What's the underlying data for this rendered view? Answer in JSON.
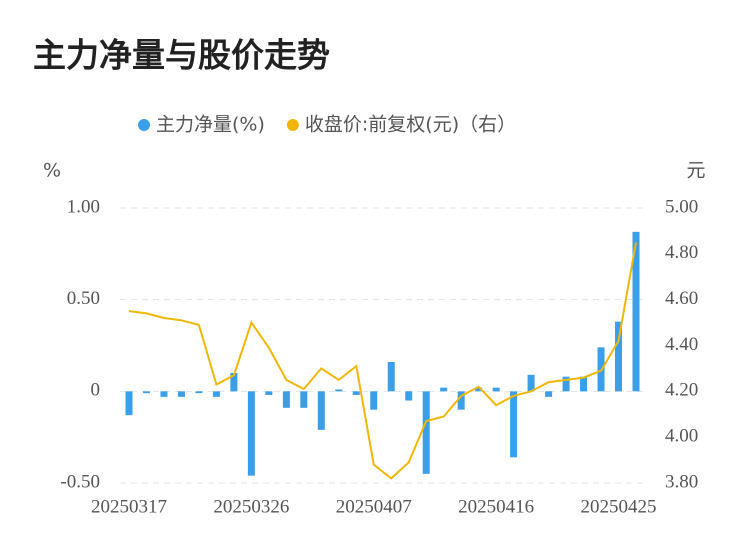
{
  "chart_data": {
    "type": "combo",
    "title": "主力净量与股价走势",
    "y_label": "%",
    "y2_label": "元",
    "categories": [
      "20250317",
      null,
      null,
      null,
      null,
      null,
      null,
      "20250326",
      null,
      null,
      null,
      null,
      null,
      null,
      "20250407",
      null,
      null,
      null,
      null,
      null,
      null,
      "20250416",
      null,
      null,
      null,
      null,
      null,
      null,
      "20250425",
      null
    ],
    "series": [
      {
        "name": "主力净量(%)",
        "type": "bar",
        "axis": "y",
        "color": "#3a9ee8",
        "values": [
          -0.13,
          -0.01,
          -0.03,
          -0.03,
          -0.01,
          -0.03,
          0.1,
          -0.46,
          -0.02,
          -0.09,
          -0.09,
          -0.21,
          0.01,
          -0.02,
          -0.1,
          0.16,
          -0.05,
          -0.45,
          0.02,
          -0.1,
          0.02,
          0.02,
          -0.36,
          0.09,
          -0.03,
          0.08,
          0.08,
          0.24,
          0.38,
          0.87
        ]
      },
      {
        "name": "收盘价:前复权(元)（右）",
        "type": "line",
        "axis": "y2",
        "color": "#f2b705",
        "values": [
          4.55,
          4.54,
          4.52,
          4.51,
          4.49,
          4.23,
          4.27,
          4.5,
          4.39,
          4.25,
          4.21,
          4.3,
          4.25,
          4.31,
          3.88,
          3.82,
          3.89,
          4.07,
          4.09,
          4.18,
          4.22,
          4.14,
          4.18,
          4.2,
          4.24,
          4.25,
          4.26,
          4.29,
          4.42,
          4.85
        ]
      }
    ],
    "ylim": [
      -0.5,
      1
    ],
    "yticks": [
      {
        "value": 1,
        "label": "1.00"
      },
      {
        "value": 0.5,
        "label": "0.50"
      },
      0,
      {
        "value": -0.5,
        "label": "-0.50"
      }
    ],
    "y2lim": [
      3.8,
      5
    ],
    "y2ticks": [
      {
        "value": 5,
        "label": "5.00"
      },
      {
        "value": 4.8,
        "label": "4.80"
      },
      {
        "value": 4.6,
        "label": "4.60"
      },
      {
        "value": 4.4,
        "label": "4.40"
      },
      {
        "value": 4.2,
        "label": "4.20"
      },
      {
        "value": 4,
        "label": "4.00"
      },
      {
        "value": 3.8,
        "label": "3.80"
      }
    ],
    "grid": true,
    "legend": "top"
  }
}
